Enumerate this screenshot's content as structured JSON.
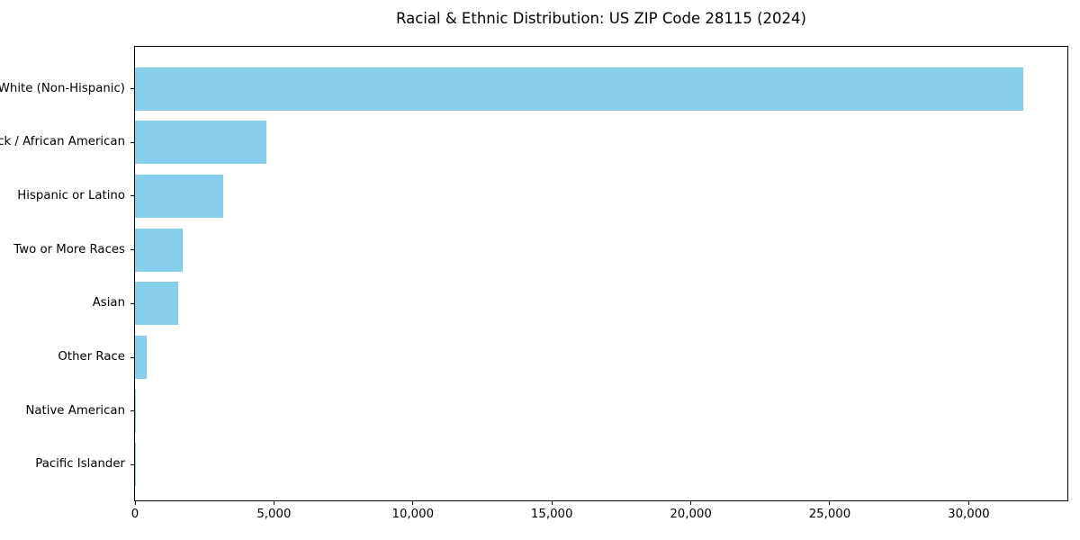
{
  "chart_data": {
    "type": "bar",
    "orientation": "horizontal",
    "title": "Racial & Ethnic Distribution: US ZIP Code 28115 (2024)",
    "categories": [
      "White (Non-Hispanic)",
      "Black / African American",
      "Hispanic or Latino",
      "Two or More Races",
      "Asian",
      "Other Race",
      "Native American",
      "Pacific Islander"
    ],
    "values": [
      31950,
      4720,
      3170,
      1710,
      1550,
      410,
      40,
      15
    ],
    "xlabel": "",
    "ylabel": "",
    "xlim": [
      0,
      33550
    ],
    "x_ticks": [
      0,
      5000,
      10000,
      15000,
      20000,
      25000,
      30000
    ],
    "x_tick_labels": [
      "0",
      "5,000",
      "10,000",
      "15,000",
      "20,000",
      "25,000",
      "30,000"
    ],
    "bar_color": "#87CEEB",
    "text_color": "#000000",
    "background_color": "#ffffff",
    "grid": false,
    "legend": null,
    "sort_order": "descending"
  }
}
